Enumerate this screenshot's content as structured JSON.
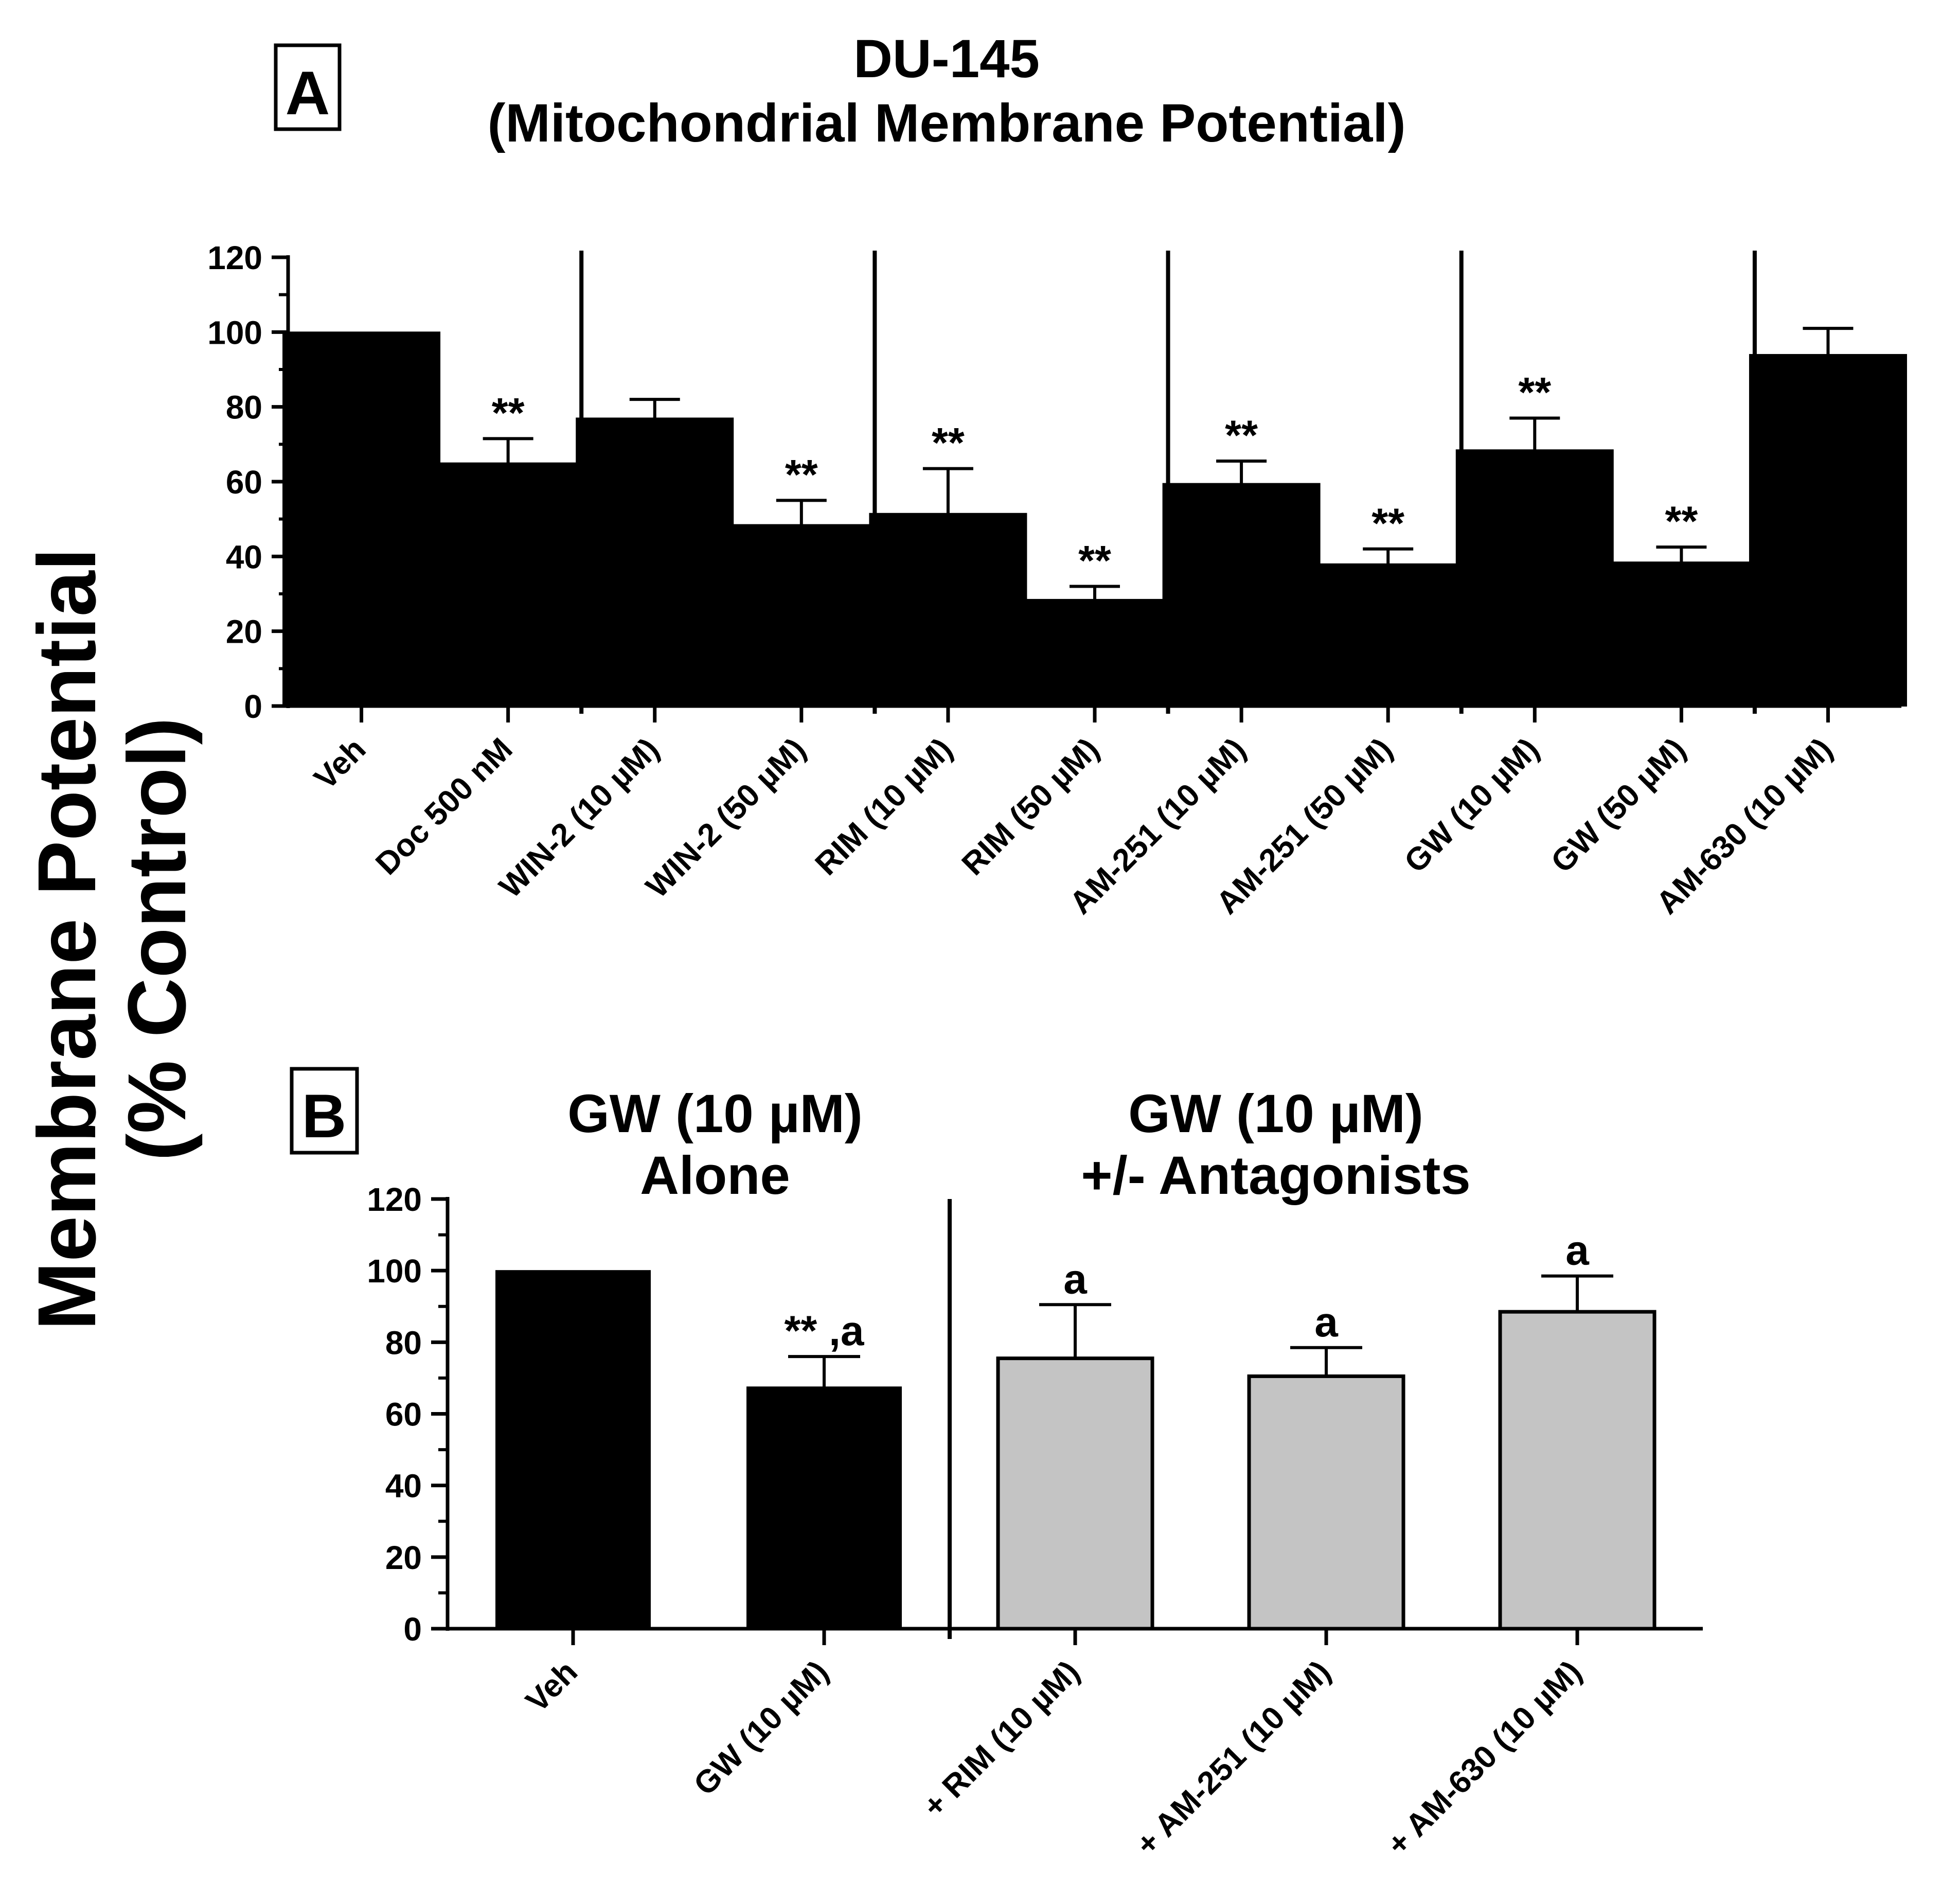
{
  "figure": {
    "ylabel_line1": "Membrane Potential",
    "ylabel_line2": "(% Control)"
  },
  "chart_data": [
    {
      "panel": "A",
      "type": "bar",
      "title": "DU-145",
      "subtitle": "(Mitochondrial Membrane Potential)",
      "xlabel": "",
      "ylabel": "Membrane Potential (% Control)",
      "ylim": [
        0,
        120
      ],
      "yticks": [
        0,
        20,
        40,
        60,
        80,
        100,
        120
      ],
      "grid": false,
      "categories": [
        "Veh",
        "Doc 500 nM",
        "WIN-2 (10 µM)",
        "WIN-2 (50 µM)",
        "RIM (10 µM)",
        "RIM (50 µM)",
        "AM-251 (10 µM)",
        "AM-251 (50 µM)",
        "GW (10 µM)",
        "GW (50 µM)",
        "AM-630 (10 µM)"
      ],
      "values": [
        100,
        65,
        77,
        48.5,
        51.5,
        28.5,
        59.5,
        38,
        68.5,
        38.5,
        94
      ],
      "errors": [
        0,
        6.5,
        5,
        6.5,
        12,
        3.5,
        6,
        4,
        8.5,
        4,
        7
      ],
      "annotations": [
        "",
        "**",
        "",
        "**",
        "**",
        "**",
        "**",
        "**",
        "**",
        "**",
        ""
      ],
      "bar_colors": [
        "#000000",
        "#000000",
        "#000000",
        "#000000",
        "#000000",
        "#000000",
        "#000000",
        "#000000",
        "#000000",
        "#000000",
        "#000000"
      ],
      "group_separators_after": [
        1,
        3,
        5,
        7,
        9
      ]
    },
    {
      "panel": "B",
      "type": "bar",
      "group_titles": [
        {
          "line1": "GW (10 µM)",
          "line2": "Alone"
        },
        {
          "line1": "GW (10 µM)",
          "line2": "+/- Antagonists"
        }
      ],
      "xlabel": "",
      "ylabel": "Membrane Potential (% Control)",
      "ylim": [
        0,
        120
      ],
      "yticks": [
        0,
        20,
        40,
        60,
        80,
        100,
        120
      ],
      "grid": false,
      "categories": [
        "Veh",
        "GW (10 µM)",
        "+ RIM (10 µM)",
        "+ AM-251 (10 µM)",
        "+ AM-630 (10 µM)"
      ],
      "values": [
        100,
        67.5,
        75.5,
        70.5,
        88.5
      ],
      "errors": [
        0,
        8.5,
        15,
        8,
        10
      ],
      "annotations": [
        "",
        "** ,a",
        "a",
        "a",
        "a"
      ],
      "bar_colors": [
        "#000000",
        "#000000",
        "#c4c4c4",
        "#c4c4c4",
        "#c4c4c4"
      ],
      "group_separators_after": [
        1
      ]
    }
  ]
}
